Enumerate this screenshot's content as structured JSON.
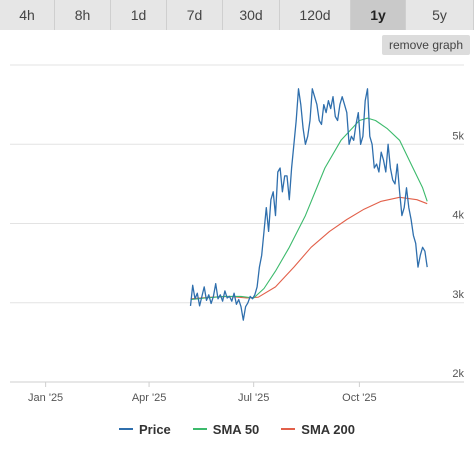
{
  "ranges": [
    {
      "label": "4h",
      "active": false
    },
    {
      "label": "8h",
      "active": false
    },
    {
      "label": "1d",
      "active": false
    },
    {
      "label": "7d",
      "active": false
    },
    {
      "label": "30d",
      "active": false
    },
    {
      "label": "120d",
      "active": false
    },
    {
      "label": "1y",
      "active": true
    },
    {
      "label": "5y",
      "active": false
    }
  ],
  "remove_graph_label": "remove graph",
  "chart_data": {
    "type": "line",
    "title": "",
    "xlabel": "",
    "ylabel": "",
    "ylim": [
      2000,
      6000
    ],
    "y_ticks": [
      {
        "value": 2000,
        "label": "2k"
      },
      {
        "value": 3000,
        "label": "3k"
      },
      {
        "value": 4000,
        "label": "4k"
      },
      {
        "value": 5000,
        "label": "5k"
      }
    ],
    "x_ticks": [
      {
        "x": "2025-01-01",
        "label": "Jan '25"
      },
      {
        "x": "2025-04-01",
        "label": "Apr '25"
      },
      {
        "x": "2025-07-01",
        "label": "Jul '25"
      },
      {
        "x": "2025-10-01",
        "label": "Oct '25"
      }
    ],
    "xlim": [
      "2024-12-01",
      "2025-12-31"
    ],
    "grid": true,
    "legend_position": "bottom",
    "series": [
      {
        "name": "Price",
        "color": "#2f6fad",
        "points": [
          [
            "2025-05-07",
            2960
          ],
          [
            "2025-05-09",
            3220
          ],
          [
            "2025-05-11",
            3050
          ],
          [
            "2025-05-13",
            3120
          ],
          [
            "2025-05-15",
            2960
          ],
          [
            "2025-05-17",
            3080
          ],
          [
            "2025-05-19",
            3200
          ],
          [
            "2025-05-21",
            3030
          ],
          [
            "2025-05-23",
            3100
          ],
          [
            "2025-05-25",
            2990
          ],
          [
            "2025-05-27",
            3080
          ],
          [
            "2025-05-29",
            3240
          ],
          [
            "2025-05-31",
            3050
          ],
          [
            "2025-06-02",
            3100
          ],
          [
            "2025-06-04",
            3020
          ],
          [
            "2025-06-06",
            3150
          ],
          [
            "2025-06-08",
            3060
          ],
          [
            "2025-06-10",
            3080
          ],
          [
            "2025-06-12",
            3020
          ],
          [
            "2025-06-14",
            3120
          ],
          [
            "2025-06-16",
            2980
          ],
          [
            "2025-06-18",
            3040
          ],
          [
            "2025-06-20",
            2950
          ],
          [
            "2025-06-22",
            2780
          ],
          [
            "2025-06-24",
            2950
          ],
          [
            "2025-06-26",
            3000
          ],
          [
            "2025-06-28",
            3080
          ],
          [
            "2025-06-30",
            3050
          ],
          [
            "2025-07-02",
            3100
          ],
          [
            "2025-07-04",
            3200
          ],
          [
            "2025-07-06",
            3450
          ],
          [
            "2025-07-08",
            3600
          ],
          [
            "2025-07-10",
            3900
          ],
          [
            "2025-07-12",
            4200
          ],
          [
            "2025-07-14",
            3900
          ],
          [
            "2025-07-16",
            4300
          ],
          [
            "2025-07-18",
            4400
          ],
          [
            "2025-07-20",
            4100
          ],
          [
            "2025-07-22",
            4650
          ],
          [
            "2025-07-24",
            4700
          ],
          [
            "2025-07-26",
            4400
          ],
          [
            "2025-07-28",
            4600
          ],
          [
            "2025-07-30",
            4600
          ],
          [
            "2025-08-01",
            4300
          ],
          [
            "2025-08-03",
            4700
          ],
          [
            "2025-08-05",
            5000
          ],
          [
            "2025-08-07",
            5300
          ],
          [
            "2025-08-09",
            5700
          ],
          [
            "2025-08-11",
            5500
          ],
          [
            "2025-08-13",
            5200
          ],
          [
            "2025-08-15",
            5000
          ],
          [
            "2025-08-17",
            5100
          ],
          [
            "2025-08-19",
            5300
          ],
          [
            "2025-08-21",
            5700
          ],
          [
            "2025-08-23",
            5600
          ],
          [
            "2025-08-25",
            5500
          ],
          [
            "2025-08-27",
            5300
          ],
          [
            "2025-08-29",
            5250
          ],
          [
            "2025-08-31",
            5500
          ],
          [
            "2025-09-02",
            5400
          ],
          [
            "2025-09-04",
            5550
          ],
          [
            "2025-09-06",
            5450
          ],
          [
            "2025-09-08",
            5600
          ],
          [
            "2025-09-10",
            5350
          ],
          [
            "2025-09-12",
            5300
          ],
          [
            "2025-09-14",
            5500
          ],
          [
            "2025-09-16",
            5600
          ],
          [
            "2025-09-18",
            5500
          ],
          [
            "2025-09-20",
            5400
          ],
          [
            "2025-09-22",
            5000
          ],
          [
            "2025-09-24",
            5100
          ],
          [
            "2025-09-26",
            5050
          ],
          [
            "2025-09-28",
            5250
          ],
          [
            "2025-09-30",
            5400
          ],
          [
            "2025-10-02",
            5000
          ],
          [
            "2025-10-04",
            5100
          ],
          [
            "2025-10-06",
            5550
          ],
          [
            "2025-10-08",
            5700
          ],
          [
            "2025-10-10",
            5100
          ],
          [
            "2025-10-12",
            5000
          ],
          [
            "2025-10-14",
            4700
          ],
          [
            "2025-10-16",
            4750
          ],
          [
            "2025-10-18",
            4650
          ],
          [
            "2025-10-20",
            4900
          ],
          [
            "2025-10-22",
            4800
          ],
          [
            "2025-10-24",
            4650
          ],
          [
            "2025-10-26",
            5000
          ],
          [
            "2025-10-28",
            4700
          ],
          [
            "2025-10-30",
            4550
          ],
          [
            "2025-11-01",
            4500
          ],
          [
            "2025-11-03",
            4750
          ],
          [
            "2025-11-05",
            4400
          ],
          [
            "2025-11-07",
            4100
          ],
          [
            "2025-11-09",
            4200
          ],
          [
            "2025-11-11",
            4450
          ],
          [
            "2025-11-13",
            4200
          ],
          [
            "2025-11-15",
            4050
          ],
          [
            "2025-11-17",
            3850
          ],
          [
            "2025-11-19",
            3750
          ],
          [
            "2025-11-21",
            3450
          ],
          [
            "2025-11-23",
            3600
          ],
          [
            "2025-11-25",
            3700
          ],
          [
            "2025-11-27",
            3650
          ],
          [
            "2025-11-29",
            3450
          ]
        ]
      },
      {
        "name": "SMA 50",
        "color": "#3cba6c",
        "points": [
          [
            "2025-05-07",
            3040
          ],
          [
            "2025-05-20",
            3060
          ],
          [
            "2025-06-05",
            3080
          ],
          [
            "2025-06-20",
            3080
          ],
          [
            "2025-07-01",
            3060
          ],
          [
            "2025-07-10",
            3180
          ],
          [
            "2025-07-20",
            3400
          ],
          [
            "2025-08-01",
            3700
          ],
          [
            "2025-08-15",
            4100
          ],
          [
            "2025-09-01",
            4700
          ],
          [
            "2025-09-15",
            5050
          ],
          [
            "2025-10-01",
            5300
          ],
          [
            "2025-10-08",
            5330
          ],
          [
            "2025-10-15",
            5300
          ],
          [
            "2025-10-25",
            5200
          ],
          [
            "2025-11-05",
            5050
          ],
          [
            "2025-11-15",
            4750
          ],
          [
            "2025-11-25",
            4450
          ],
          [
            "2025-11-29",
            4280
          ]
        ]
      },
      {
        "name": "SMA 200",
        "color": "#e2604a",
        "points": [
          [
            "2025-05-07",
            3050
          ],
          [
            "2025-05-25",
            3070
          ],
          [
            "2025-06-10",
            3080
          ],
          [
            "2025-06-25",
            3060
          ],
          [
            "2025-07-05",
            3070
          ],
          [
            "2025-07-20",
            3200
          ],
          [
            "2025-08-05",
            3450
          ],
          [
            "2025-08-20",
            3700
          ],
          [
            "2025-09-05",
            3900
          ],
          [
            "2025-09-20",
            4050
          ],
          [
            "2025-10-05",
            4180
          ],
          [
            "2025-10-20",
            4280
          ],
          [
            "2025-11-05",
            4330
          ],
          [
            "2025-11-20",
            4300
          ],
          [
            "2025-11-29",
            4250
          ]
        ]
      }
    ]
  },
  "legend": [
    {
      "label": "Price",
      "color": "#2f6fad"
    },
    {
      "label": "SMA 50",
      "color": "#3cba6c"
    },
    {
      "label": "SMA 200",
      "color": "#e2604a"
    }
  ]
}
